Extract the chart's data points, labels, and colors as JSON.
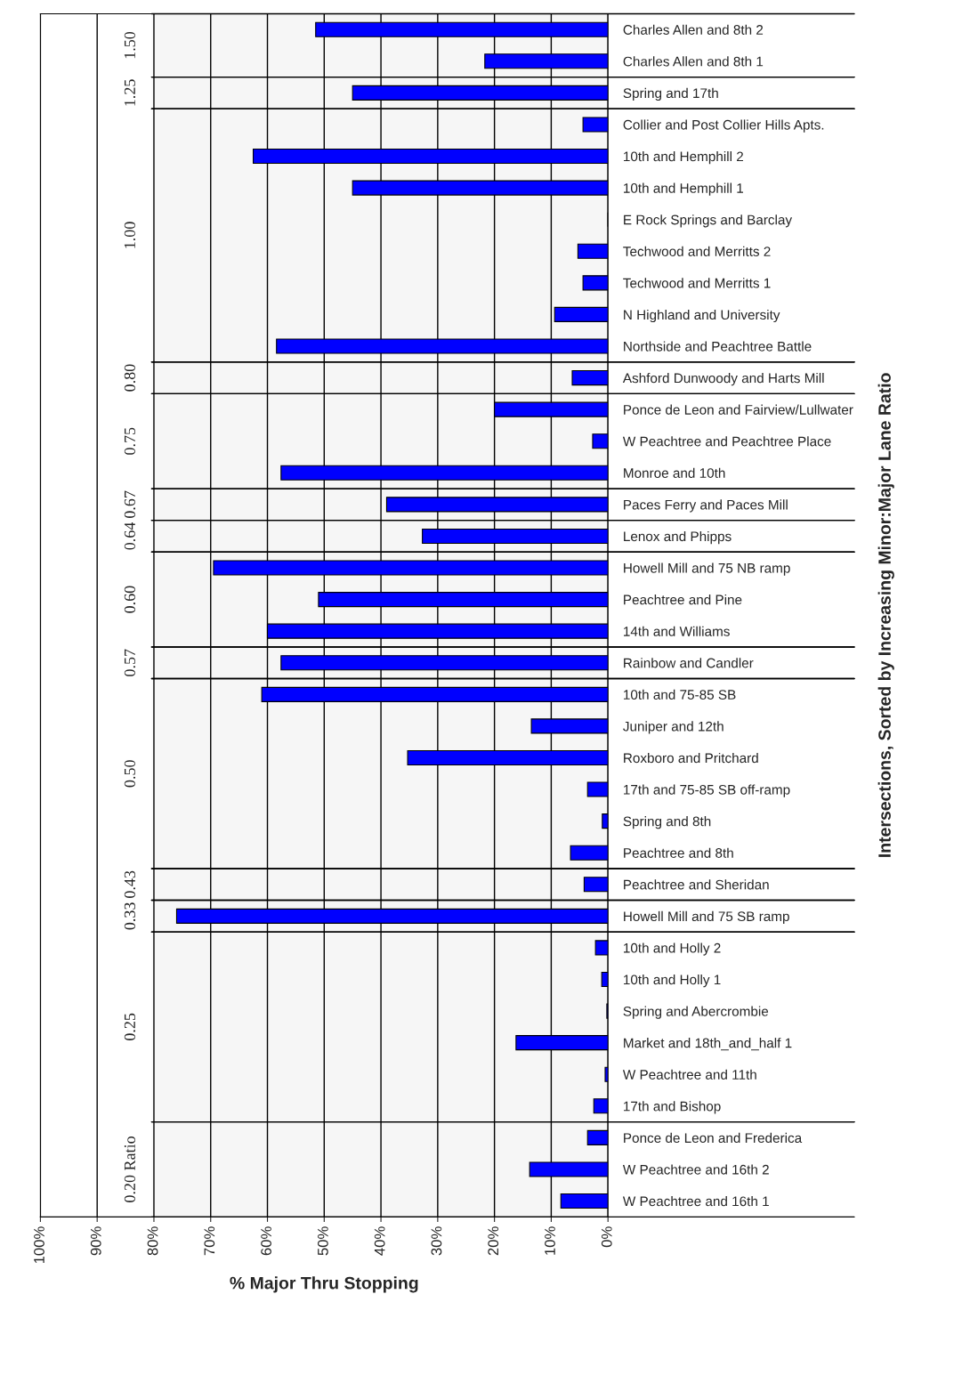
{
  "chart_data": {
    "type": "bar",
    "orientation": "horizontal",
    "xlabel": "% Major Thru Stopping",
    "ylabel": "Intersections, Sorted by Increasing Minor:Major Lane Ratio",
    "categories": [
      "Charles Allen and 8th 2",
      "Charles Allen and 8th 1",
      "Spring and 17th",
      "Collier and Post Collier Hills Apts.",
      "10th and Hemphill 2",
      "10th and Hemphill 1",
      "E Rock Springs and Barclay",
      "Techwood and Merritts 2",
      "Techwood and Merritts 1",
      "N Highland and University",
      "Northside and Peachtree Battle",
      "Ashford Dunwoody and Harts Mill",
      "Ponce de Leon and Fairview/Lullwater",
      "W Peachtree and Peachtree Place",
      "Monroe and 10th",
      "Paces Ferry and Paces Mill",
      "Lenox and Phipps",
      "Howell Mill and 75 NB ramp",
      "Peachtree and Pine",
      "14th and Williams",
      "Rainbow and Candler",
      "10th and 75-85 SB",
      "Juniper and 12th",
      "Roxboro and Pritchard",
      "17th and 75-85 SB off-ramp",
      "Spring and 8th",
      "Peachtree and 8th",
      "Peachtree and Sheridan",
      "Howell Mill and 75 SB ramp",
      "10th and Holly 2",
      "10th and Holly 1",
      "Spring and Abercrombie",
      "Market and 18th_and_half 1",
      "W Peachtree and 11th",
      "17th and Bishop",
      "Ponce de Leon and Frederica",
      "W Peachtree and 16th 2",
      "W Peachtree and 16th 1"
    ],
    "series": [
      {
        "color": "#0000ff",
        "values": [
          51.5,
          21.7,
          45,
          4.4,
          62.5,
          45,
          0,
          5.3,
          4.4,
          9.4,
          58.4,
          6.3,
          20,
          2.7,
          57.6,
          39,
          32.7,
          69.5,
          51,
          60,
          57.6,
          61,
          13.5,
          35.3,
          3.6,
          1,
          6.6,
          4.2,
          76,
          2.2,
          1.1,
          0.2,
          16.2,
          0.5,
          2.5,
          3.6,
          13.8,
          8.3
        ]
      }
    ],
    "xlim": [
      100,
      0
    ],
    "xticks": [
      {
        "value": 100,
        "label": "100%"
      },
      {
        "value": 90,
        "label": "90%"
      },
      {
        "value": 80,
        "label": "80%"
      },
      {
        "value": 70,
        "label": "70%"
      },
      {
        "value": 60,
        "label": "60%"
      },
      {
        "value": 50,
        "label": "50%"
      },
      {
        "value": 40,
        "label": "40%"
      },
      {
        "value": 30,
        "label": "30%"
      },
      {
        "value": 20,
        "label": "20%"
      },
      {
        "value": 10,
        "label": "10%"
      },
      {
        "value": 0,
        "label": "0%"
      }
    ],
    "grid": "x",
    "legend": false,
    "annotations": [
      "1.50",
      "1.25",
      "1.00",
      "0.80",
      "0.75",
      "0.67",
      "0.64",
      "0.60",
      "0.57",
      "0.50",
      "0.43",
      "0.33",
      "0.25",
      "0.20 Ratio"
    ],
    "bands": [
      {
        "axis": "y",
        "from": "Charles Allen and 8th 2",
        "to": "Charles Allen and 8th 1",
        "color": "#f6f6f6"
      },
      {
        "axis": "y",
        "from": "Spring and 17th",
        "to": "Spring and 17th",
        "color": "#f6f6f6"
      },
      {
        "axis": "y",
        "from": "Collier and Post Collier Hills Apts.",
        "to": "Northside and Peachtree Battle",
        "color": "#f6f6f6"
      },
      {
        "axis": "y",
        "from": "Ashford Dunwoody and Harts Mill",
        "to": "Ashford Dunwoody and Harts Mill",
        "color": "#f6f6f6"
      },
      {
        "axis": "y",
        "from": "Ponce de Leon and Fairview/Lullwater",
        "to": "Monroe and 10th",
        "color": "#f6f6f6"
      },
      {
        "axis": "y",
        "from": "Paces Ferry and Paces Mill",
        "to": "Paces Ferry and Paces Mill",
        "color": "#f6f6f6"
      },
      {
        "axis": "y",
        "from": "Lenox and Phipps",
        "to": "Lenox and Phipps",
        "color": "#f6f6f6"
      },
      {
        "axis": "y",
        "from": "Howell Mill and 75 NB ramp",
        "to": "14th and Williams",
        "color": "#f6f6f6"
      },
      {
        "axis": "y",
        "from": "Rainbow and Candler",
        "to": "Rainbow and Candler",
        "color": "#f6f6f6"
      },
      {
        "axis": "y",
        "from": "10th and 75-85 SB",
        "to": "Peachtree and 8th",
        "color": "#f6f6f6"
      },
      {
        "axis": "y",
        "from": "Peachtree and Sheridan",
        "to": "Peachtree and Sheridan",
        "color": "#f6f6f6"
      },
      {
        "axis": "y",
        "from": "Howell Mill and 75 SB ramp",
        "to": "Howell Mill and 75 SB ramp",
        "color": "#f6f6f6"
      },
      {
        "axis": "y",
        "from": "10th and Holly 2",
        "to": "17th and Bishop",
        "color": "#f6f6f6"
      },
      {
        "axis": "y",
        "from": "Ponce de Leon and Frederica",
        "to": "W Peachtree and 16th 1",
        "color": "#f6f6f6"
      }
    ]
  }
}
